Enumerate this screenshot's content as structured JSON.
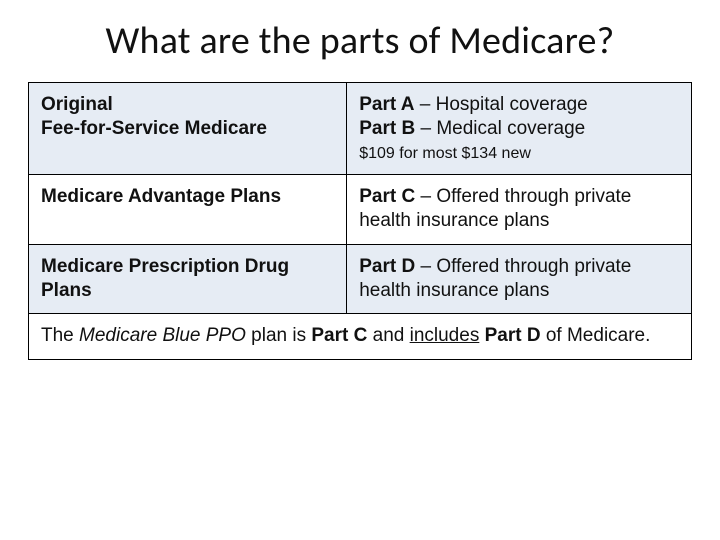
{
  "title": "What are the parts of  Medicare?",
  "table": {
    "columns": {
      "left_width_pct": 48,
      "right_width_pct": 52
    },
    "colors": {
      "border": "#000000",
      "shade_bg": "#e6ecf4",
      "plain_bg": "#ffffff",
      "text": "#111111"
    },
    "typography": {
      "title_font": "Calibri",
      "title_fontsize": 38,
      "body_font": "Verdana",
      "body_fontsize": 19,
      "subnote_fontsize": 16
    },
    "rows": [
      {
        "shaded": true,
        "left_line1": "Original",
        "left_line2": "Fee-for-Service Medicare",
        "right_a_bold": "Part A",
        "right_a_rest": " – Hospital coverage",
        "right_b_bold": "Part B",
        "right_b_rest": " – Medical coverage",
        "right_sub": "$109 for most  $134 new"
      },
      {
        "shaded": false,
        "left_line1": "Medicare Advantage Plans",
        "right_a_bold": "Part C",
        "right_a_rest": " – Offered through private health insurance plans"
      },
      {
        "shaded": true,
        "left_line1": "Medicare Prescription Drug Plans",
        "right_a_bold": "Part D",
        "right_a_rest": " – Offered through private health insurance plans"
      }
    ],
    "footer": {
      "pre": "The ",
      "plan_italic": "Medicare Blue PPO ",
      "mid1": " plan is ",
      "partc_bold": "Part C",
      "mid2": " and ",
      "includes_underline": "includes",
      "mid3": " ",
      "partd_bold": "Part D",
      "tail": " of Medicare."
    }
  }
}
